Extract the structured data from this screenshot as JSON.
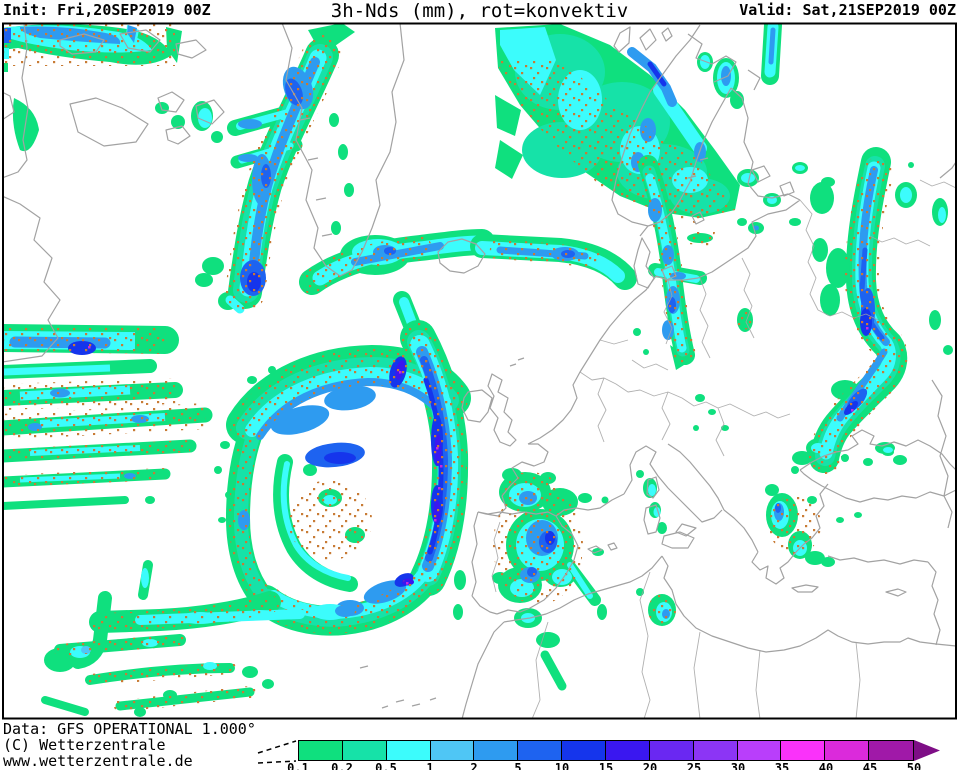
{
  "header": {
    "init": "Init: Fri,20SEP2019 00Z",
    "title": "3h-Nds (mm), rot=konvektiv",
    "valid": "Valid: Sat,21SEP2019 00Z"
  },
  "footer": {
    "data_line": "Data: GFS OPERATIONAL 1.000°",
    "copyright_line": "(C) Wetterzentrale",
    "site_line": "www.wetterzentrale.de"
  },
  "legend": {
    "labels": [
      "0.1",
      "0.2",
      "0.5",
      "1",
      "2",
      "5",
      "10",
      "15",
      "20",
      "25",
      "30",
      "35",
      "40",
      "45",
      "50"
    ],
    "colors": [
      "#0FE07E",
      "#16E2A8",
      "#3CFCFC",
      "#4FC6F5",
      "#2E9BF0",
      "#1E63F0",
      "#1535EC",
      "#3A17F0",
      "#6A28F2",
      "#8C35F5",
      "#B93EFB",
      "#FA32FA",
      "#DB2ADB",
      "#A019A8"
    ],
    "arrow_color": "#7E0E86",
    "unit": "mm"
  },
  "map": {
    "palette": {
      "green": "#0FE07E",
      "aqua": "#16E2A8",
      "cyan": "#3CFCFC",
      "lblue": "#4FC6F5",
      "blue": "#2E9BF0",
      "mblue": "#1E63F0",
      "dblue": "#1535EC",
      "violet": "#3A17F0",
      "purple": "#6A28F2",
      "magenta": "#C928E0",
      "dot": "#C87B35",
      "coast": "#A2A2A2",
      "border": "#000000"
    }
  }
}
